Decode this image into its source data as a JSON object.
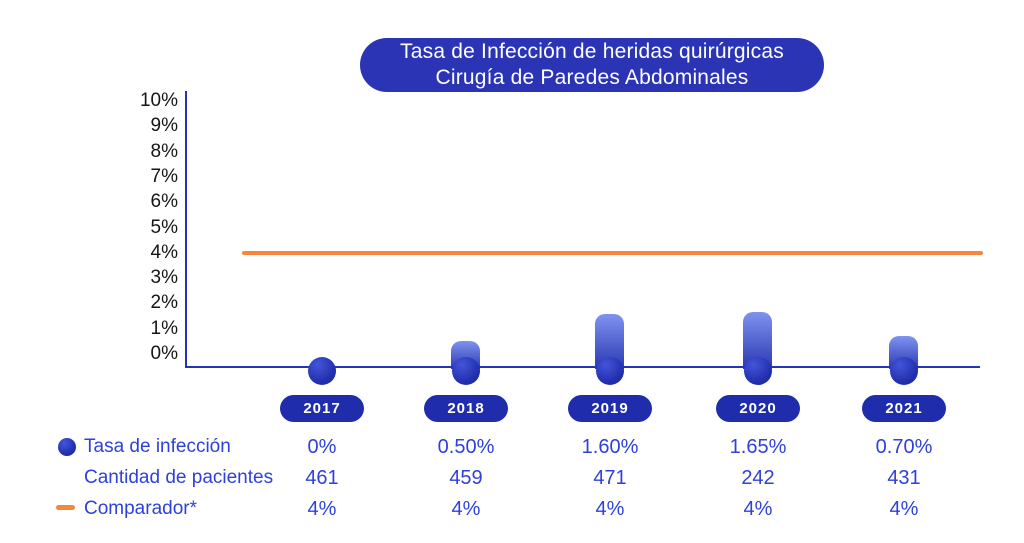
{
  "title": {
    "line1": "Tasa de Infección de heridas quirúrgicas",
    "line2": "Cirugía de Paredes Abdominales"
  },
  "chart_data": {
    "type": "bar",
    "title": "Tasa de Infección de heridas quirúrgicas — Cirugía de Paredes Abdominales",
    "categories": [
      "2017",
      "2018",
      "2019",
      "2020",
      "2021"
    ],
    "series": [
      {
        "name": "Tasa de infección",
        "values": [
          0,
          0.5,
          1.6,
          1.65,
          0.7
        ],
        "labels": [
          "0%",
          "0.50%",
          "1.60%",
          "1.65%",
          "0.70%"
        ]
      },
      {
        "name": "Cantidad de pacientes",
        "values": [
          461,
          459,
          471,
          242,
          431
        ],
        "labels": [
          "461",
          "459",
          "471",
          "242",
          "431"
        ]
      },
      {
        "name": "Comparador*",
        "values": [
          4,
          4,
          4,
          4,
          4
        ],
        "labels": [
          "4%",
          "4%",
          "4%",
          "4%",
          "4%"
        ]
      }
    ],
    "comparator": {
      "value": 4,
      "label": "Comparador*"
    },
    "y_ticks": [
      "10%",
      "9%",
      "8%",
      "7%",
      "6%",
      "5%",
      "4%",
      "3%",
      "2%",
      "1%",
      "0%"
    ],
    "ylim": [
      0,
      10
    ],
    "grid": false,
    "legend_position": "bottom-left-table"
  },
  "colors": {
    "dark_blue": "#1f2cab",
    "pill_blue": "#2b34b5",
    "axis_blue": "#2334bb",
    "text_blue": "#2e41d9",
    "orange": "#f6863c",
    "bar_gradient_top": "#8093ef",
    "bar_gradient_bottom": "#2a38b3"
  }
}
